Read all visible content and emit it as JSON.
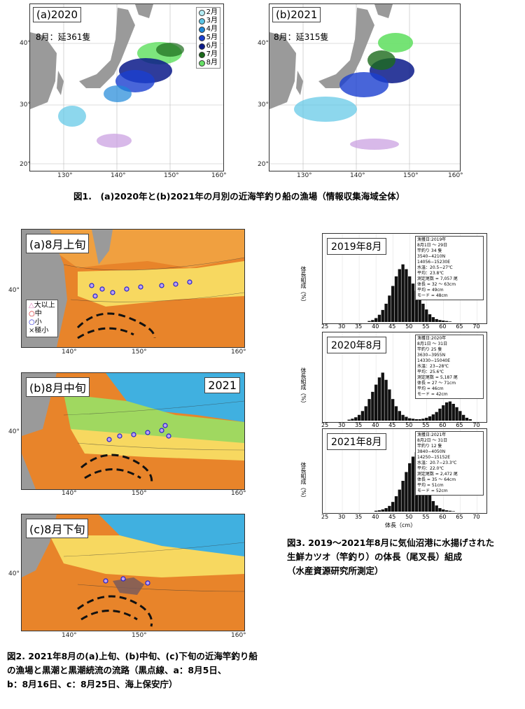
{
  "fig1": {
    "left": {
      "label": "(a)2020",
      "sub": "8月：延361隻"
    },
    "right": {
      "label": "(b)2021",
      "sub": "8月：延315隻"
    },
    "legend": [
      "2月",
      "3月",
      "4月",
      "5月",
      "6月",
      "7月",
      "8月"
    ],
    "legend_colors": [
      "#b4ecf4",
      "#5cc6e6",
      "#1e88d8",
      "#1a3fd0",
      "#0a1a8a",
      "#1b6a1b",
      "#66e066"
    ],
    "lat_ticks": [
      "40°",
      "30°",
      "20°"
    ],
    "lon_ticks": [
      "130°",
      "140°",
      "150°",
      "160°"
    ],
    "caption": "図1.　(a)2020年と(b)2021年の月別の近海竿釣り船の漁場（情報収集海域全体）"
  },
  "fig2": {
    "panels": [
      {
        "label": "(a)8月上旬"
      },
      {
        "label": "(b)8月中旬",
        "year": "2021"
      },
      {
        "label": "(c)8月下旬"
      }
    ],
    "legend": [
      {
        "symbol": "△",
        "text": "大以上",
        "color": "#e07ab8"
      },
      {
        "symbol": "○",
        "text": "中",
        "color": "#d01010"
      },
      {
        "symbol": "○",
        "text": "小",
        "color": "#2020d0"
      },
      {
        "symbol": "×",
        "text": "極小",
        "color": "#222222"
      }
    ],
    "lat_tick": "40°",
    "lon_ticks": [
      "140°",
      "150°",
      "160°"
    ],
    "caption_lines": [
      "図2. 2021年8月の(a)上旬、(b)中旬、(c)下旬の近海竿釣り船",
      "の漁場と黒潮と黒潮続流の流路（黒点線、a：8月5日、",
      "b：8月16日、c：8月25日、海上保安庁）"
    ]
  },
  "fig3": {
    "ylabel": "体長組成（%）",
    "xlabel": "体長（cm）",
    "x_ticks": [
      "25",
      "30",
      "35",
      "40",
      "45",
      "50",
      "55",
      "60",
      "65",
      "70"
    ],
    "panels": [
      {
        "title": "2019年8月",
        "info": [
          "漁獲日:2019年",
          "8月1日 ～ 29日",
          "竿釣り 34 隻",
          "3540−4210N",
          "14056−15230E",
          "水温：20.5−27℃",
          "平均：23.8℃",
          "測定尾数 = 7,057 尾",
          "体長 = 32 ～ 63cm",
          "平均 = 49cm",
          "モード = 48cm"
        ]
      },
      {
        "title": "2020年8月",
        "info": [
          "漁獲日:2020年",
          "8月1日 ～ 31日",
          "竿釣り 25 隻",
          "3630−3955N",
          "14330−15040E",
          "水温：23−28℃",
          "平均：25.6℃",
          "測定尾数 = 5,187 尾",
          "体長 = 27 ～ 71cm",
          "平均 = 46cm",
          "モード = 42cm"
        ]
      },
      {
        "title": "2021年8月",
        "info": [
          "漁獲日:2021年",
          "8月2日 ～ 31日",
          "竿釣り 12 隻",
          "3840−4050N",
          "14250−15152E",
          "水温：20.7−23.3℃",
          "平均：22.0℃",
          "測定尾数 = 2,472 尾",
          "体長 = 35 ～ 64cm",
          "平均 = 51cm",
          "モード = 52cm"
        ]
      }
    ],
    "caption_lines": [
      "図3. 2019～2021年8月に気仙沼港に水揚げされた",
      "生鮮カツオ（竿釣り）の体長（尾叉長）組成",
      "（水産資源研究所測定）"
    ]
  },
  "chart_data": [
    {
      "type": "bar",
      "title": "2019年8月",
      "xlabel": "体長（cm）",
      "ylabel": "体長組成（%）",
      "x": [
        38,
        39,
        40,
        41,
        42,
        43,
        44,
        45,
        46,
        47,
        48,
        49,
        50,
        51,
        52,
        53,
        54,
        55,
        56,
        57,
        58,
        59,
        60,
        61,
        62
      ],
      "values": [
        0.2,
        0.4,
        0.8,
        1.5,
        2.5,
        3.8,
        5.5,
        7.5,
        9.5,
        11,
        12,
        11,
        9.5,
        8,
        6.5,
        5,
        3.8,
        2.6,
        1.6,
        1,
        0.6,
        0.4,
        0.3,
        0.2,
        0.1
      ],
      "xlim": [
        25,
        72
      ],
      "ylim": [
        0,
        14
      ]
    },
    {
      "type": "bar",
      "title": "2020年8月",
      "xlabel": "体長（cm）",
      "ylabel": "体長組成（%）",
      "x": [
        32,
        33,
        34,
        35,
        36,
        37,
        38,
        39,
        40,
        41,
        42,
        43,
        44,
        45,
        46,
        47,
        48,
        49,
        50,
        51,
        52,
        53,
        54,
        55,
        56,
        57,
        58,
        59,
        60,
        61,
        62,
        63,
        64,
        65,
        66,
        67,
        68
      ],
      "values": [
        0.2,
        0.4,
        0.7,
        1.2,
        2,
        3,
        4.5,
        6,
        7.5,
        9,
        10,
        8.5,
        6.5,
        4.5,
        3,
        2,
        1.2,
        0.8,
        0.5,
        0.4,
        0.3,
        0.3,
        0.4,
        0.6,
        0.9,
        1.3,
        1.8,
        2.5,
        3.2,
        3.8,
        4,
        3.5,
        2.8,
        2,
        1.2,
        0.6,
        0.3
      ],
      "xlim": [
        25,
        72
      ],
      "ylim": [
        0,
        14
      ]
    },
    {
      "type": "bar",
      "title": "2021年8月",
      "xlabel": "体長（cm）",
      "ylabel": "体長組成（%）",
      "x": [
        40,
        41,
        42,
        43,
        44,
        45,
        46,
        47,
        48,
        49,
        50,
        51,
        52,
        53,
        54,
        55,
        56,
        57,
        58,
        59,
        60,
        61,
        62,
        63
      ],
      "values": [
        0.2,
        0.3,
        0.5,
        0.8,
        1.3,
        2.2,
        3.5,
        5,
        7,
        9,
        11,
        12.5,
        13.5,
        12,
        9.5,
        6.5,
        4,
        2.4,
        1.4,
        0.8,
        0.5,
        0.3,
        0.2,
        0.1
      ],
      "xlim": [
        25,
        72
      ],
      "ylim": [
        0,
        14
      ]
    }
  ]
}
